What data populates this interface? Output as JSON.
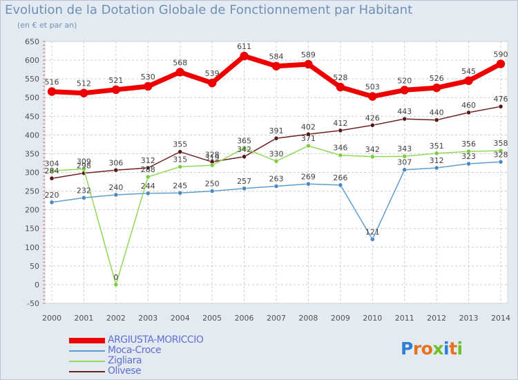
{
  "title": "Evolution de la Dotation Globale de Fonctionnement par Habitant",
  "subtitle": "(en € et par an)",
  "logo": {
    "text": "Proxiti",
    "letters": [
      "P",
      "r",
      "o",
      "x",
      "i",
      "t",
      "i"
    ],
    "colors": [
      "#2e7fd1",
      "#e2731c",
      "#e2731c",
      "#6dbf2c",
      "#2e7fd1",
      "#e2731c",
      "#6dbf2c"
    ]
  },
  "chart_data": {
    "type": "line",
    "title": "Evolution de la Dotation Globale de Fonctionnement par Habitant",
    "subtitle": "(en € et par an)",
    "xlabel": "",
    "ylabel": "",
    "x": [
      "2000",
      "2001",
      "2002",
      "2003",
      "2004",
      "2005",
      "2006",
      "2007",
      "2008",
      "2009",
      "2010",
      "2011",
      "2012",
      "2013",
      "2014"
    ],
    "yticks": [
      "650",
      "600",
      "550",
      "500",
      "450",
      "400",
      "350",
      "300",
      "250",
      "200",
      "150",
      "100",
      "50",
      "0",
      "-50"
    ],
    "ylim": [
      -50,
      650
    ],
    "grid": true,
    "legend_position": "bottom-left",
    "series": [
      {
        "name": "ARGIUSTA-MORICCIO",
        "color": "#ee0000",
        "values": [
          516,
          512,
          521,
          530,
          568,
          539,
          611,
          584,
          589,
          528,
          503,
          520,
          526,
          545,
          590
        ],
        "labels": [
          "516",
          "512",
          "521",
          "530",
          "568",
          "539",
          "611",
          "584",
          "589",
          "528",
          "503",
          "520",
          "526",
          "545",
          "590"
        ]
      },
      {
        "name": "Moca-Croce",
        "color": "#5e9ccf",
        "values": [
          220,
          232,
          240,
          244,
          245,
          250,
          257,
          263,
          269,
          266,
          121,
          307,
          312,
          323,
          328
        ],
        "labels": [
          "220",
          "232",
          "240",
          "244",
          "245",
          "250",
          "257",
          "263",
          "269",
          "266",
          "121",
          "307",
          "312",
          "323",
          "328"
        ]
      },
      {
        "name": "Zigliara",
        "color": "#8fd957",
        "values": [
          304,
          309,
          0,
          288,
          315,
          319,
          365,
          330,
          371,
          346,
          342,
          343,
          351,
          356,
          358
        ],
        "labels": [
          "304",
          "309",
          "0",
          "288",
          "315",
          "319",
          "365",
          "330",
          "371",
          "346",
          "342",
          "343",
          "351",
          "356",
          "358"
        ]
      },
      {
        "name": "Olivese",
        "color": "#6e1e1e",
        "values": [
          284,
          298,
          306,
          312,
          355,
          328,
          342,
          391,
          402,
          412,
          426,
          443,
          440,
          460,
          476
        ],
        "labels": [
          "284",
          "298",
          "306",
          "312",
          "355",
          "328",
          "342",
          "391",
          "402",
          "412",
          "426",
          "443",
          "440",
          "460",
          "476"
        ]
      }
    ]
  }
}
